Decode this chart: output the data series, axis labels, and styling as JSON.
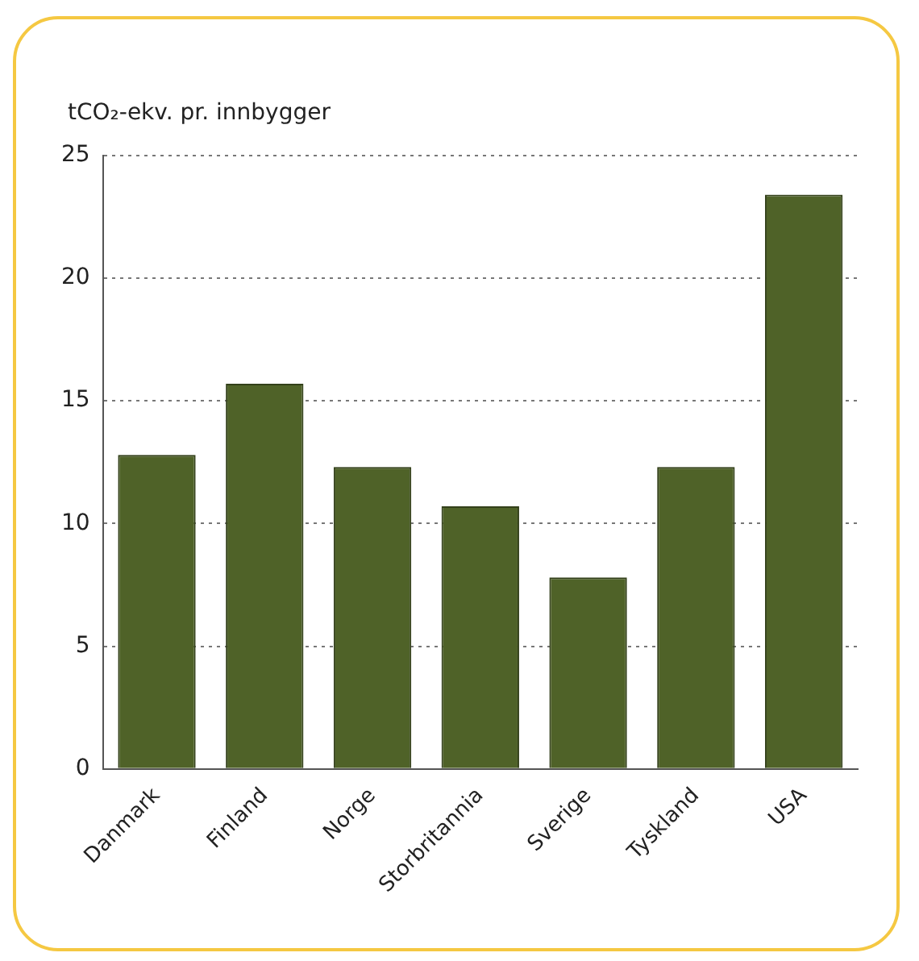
{
  "chart_data": {
    "type": "bar",
    "ylabel": "tCO₂-ekv. pr. innbygger",
    "categories": [
      "Danmark",
      "Finland",
      "Norge",
      "Storbritannia",
      "Sverige",
      "Tyskland",
      "USA"
    ],
    "values": [
      12.8,
      15.7,
      12.3,
      10.7,
      7.8,
      12.3,
      23.4
    ],
    "color": "#4f6228",
    "ylim": [
      0,
      25
    ],
    "yticks": [
      0,
      5,
      10,
      15,
      20,
      25
    ],
    "grid": "y",
    "legend": false
  }
}
